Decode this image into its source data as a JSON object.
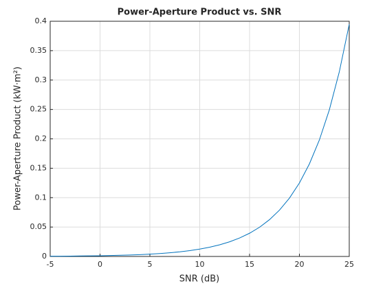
{
  "chart_data": {
    "type": "line",
    "title": "Power-Aperture Product vs. SNR",
    "x_label": "SNR (dB)",
    "y_label": "Power-Aperture Product (kW·m²)",
    "x": [
      -5,
      -4,
      -3,
      -2,
      -1,
      0,
      1,
      2,
      3,
      4,
      5,
      6,
      7,
      8,
      9,
      10,
      11,
      12,
      13,
      14,
      15,
      16,
      17,
      18,
      19,
      20,
      21,
      22,
      23,
      24,
      25
    ],
    "series": [
      {
        "name": "Power-Aperture Product",
        "color": "#0072bd",
        "values": [
          0.0004,
          0.0005,
          0.0006,
          0.0008,
          0.001,
          0.0012,
          0.0016,
          0.002,
          0.0025,
          0.0031,
          0.004,
          0.005,
          0.0063,
          0.0079,
          0.0099,
          0.0125,
          0.0157,
          0.0198,
          0.0249,
          0.0314,
          0.0395,
          0.0497,
          0.0626,
          0.0788,
          0.0992,
          0.1249,
          0.1573,
          0.198,
          0.2492,
          0.3138,
          0.395
        ]
      }
    ],
    "xlim": [
      -5,
      25
    ],
    "xticks": [
      -5,
      0,
      5,
      10,
      15,
      20,
      25
    ],
    "ylim": [
      0,
      0.4
    ],
    "yticks": [
      0,
      0.05,
      0.1,
      0.15,
      0.2,
      0.25,
      0.3,
      0.35,
      0.4
    ],
    "grid": true
  }
}
